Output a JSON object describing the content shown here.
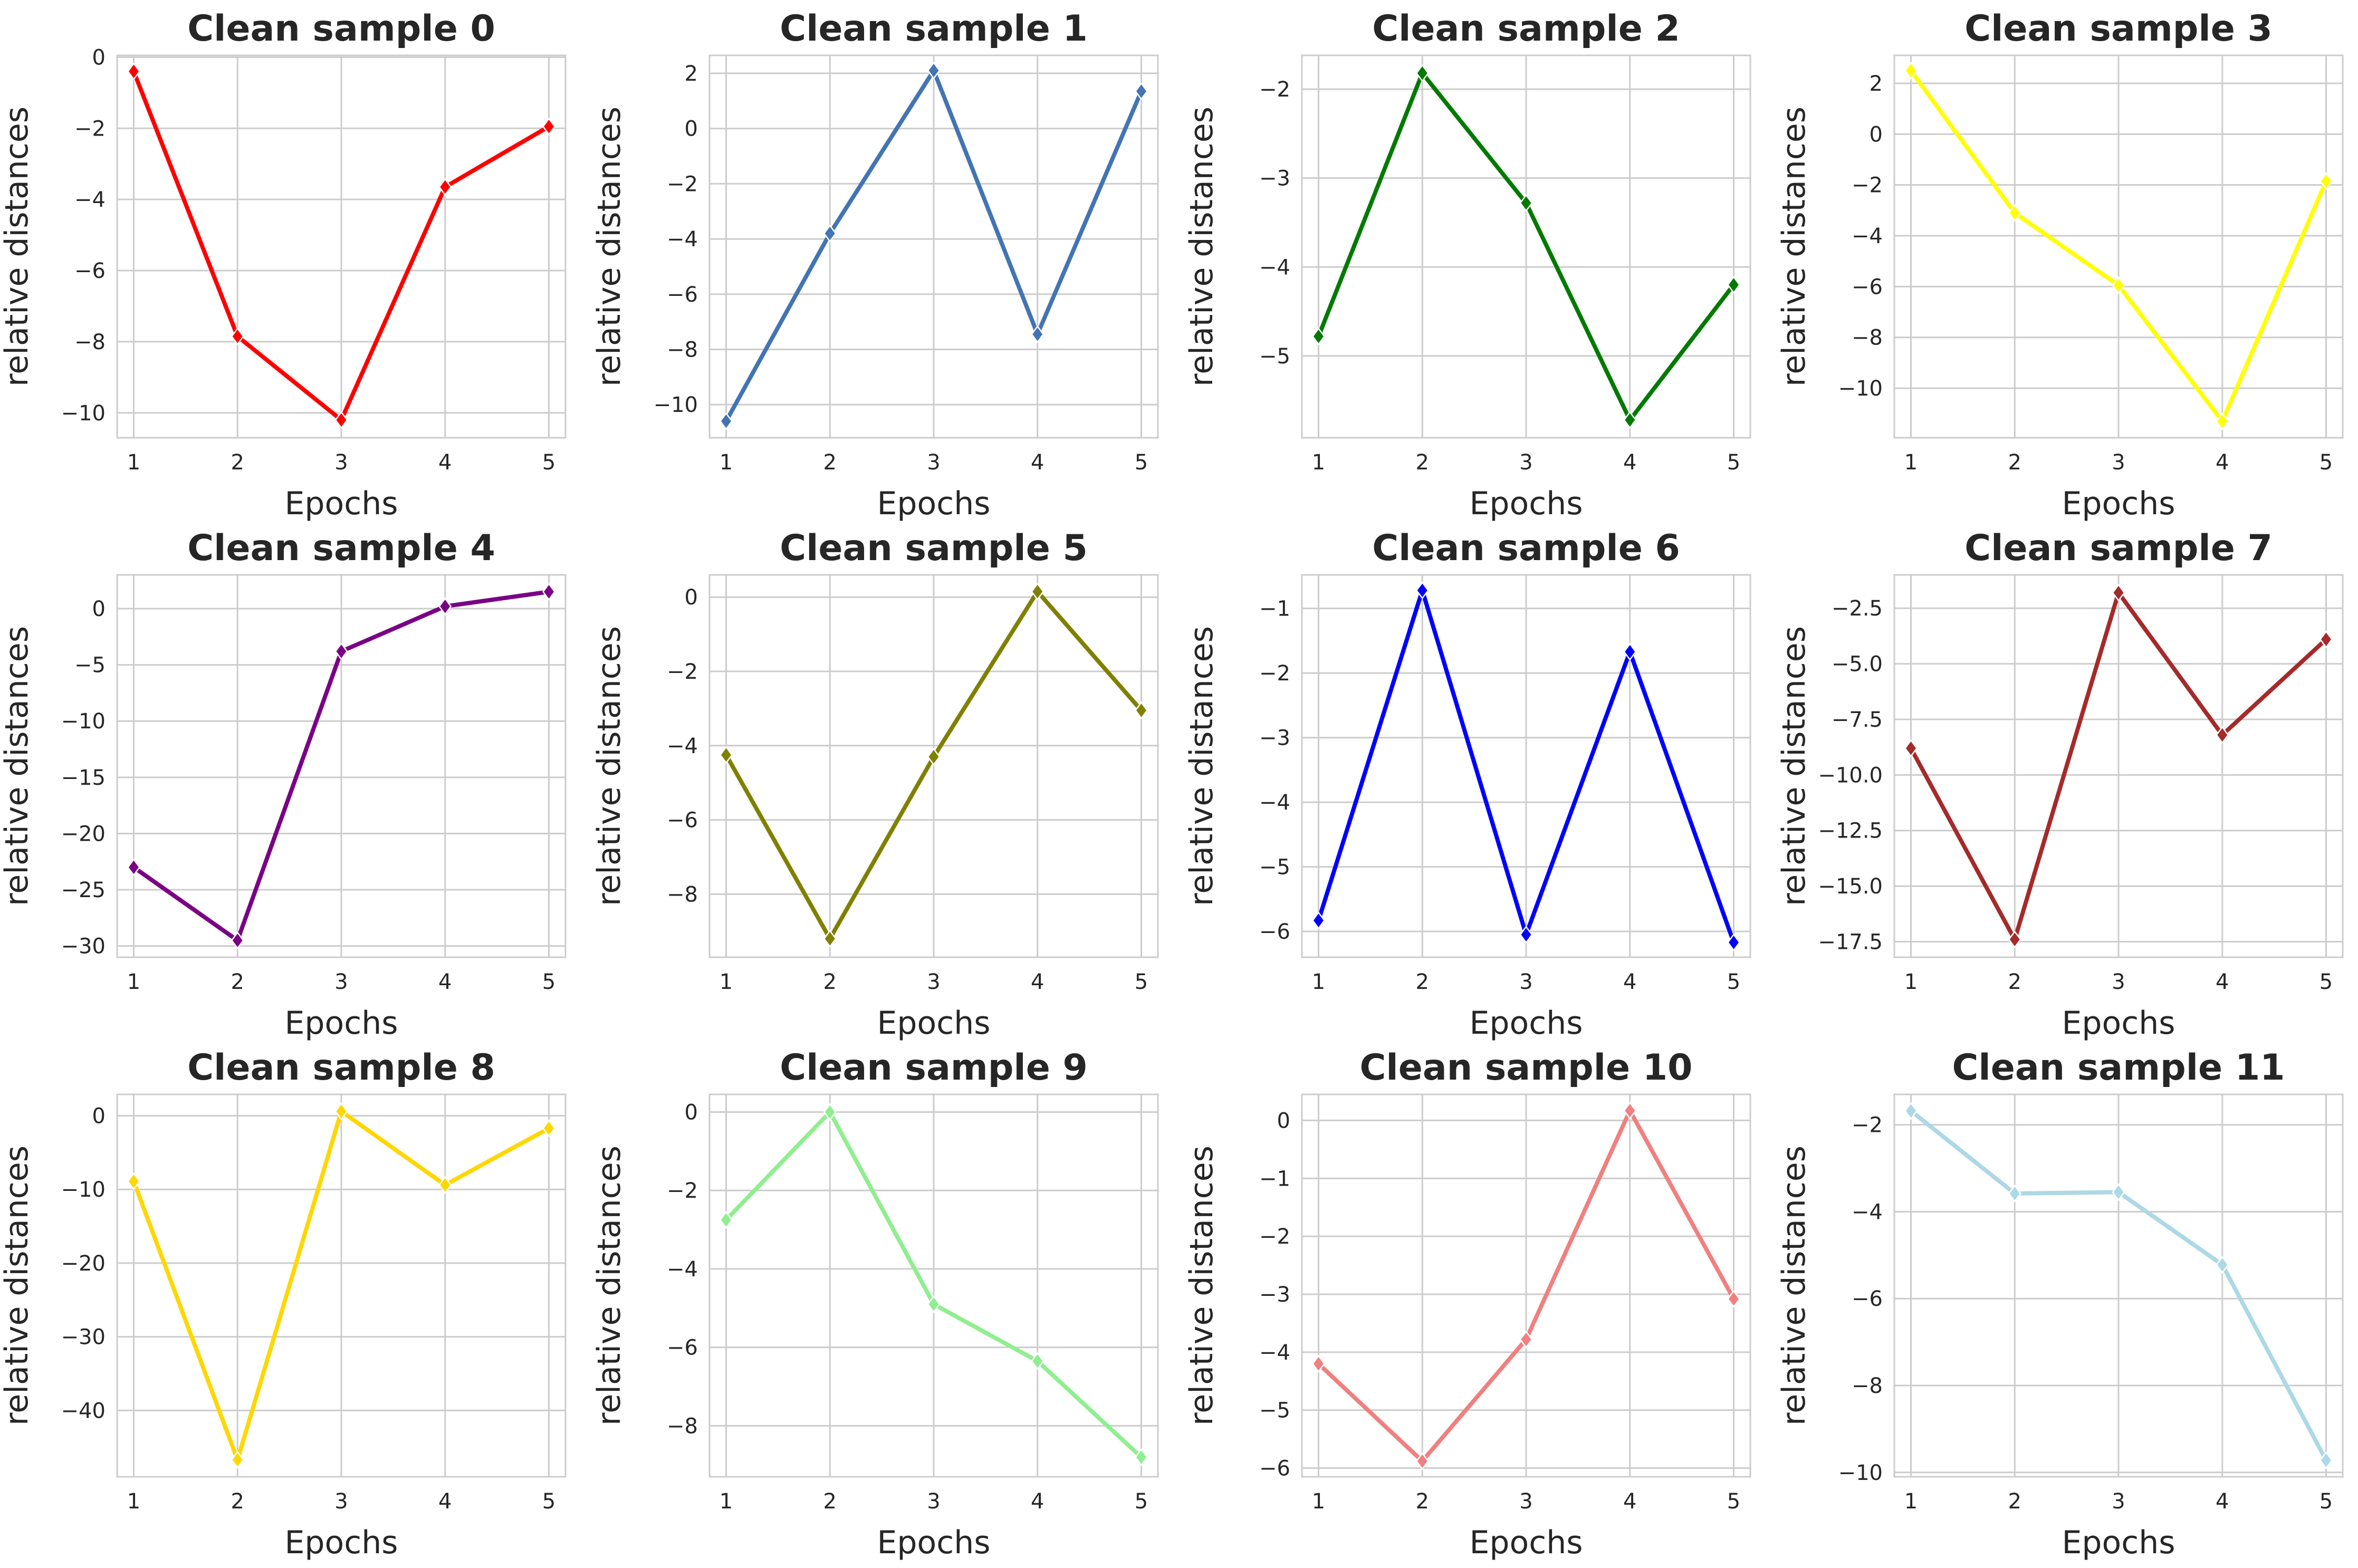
{
  "chart_data": [
    {
      "type": "line",
      "title": "Clean sample 0",
      "xlabel": "Epochs",
      "ylabel": "relative distances",
      "color": "#ff0000",
      "x": [
        1,
        2,
        3,
        4,
        5
      ],
      "values": [
        -0.4,
        -7.85,
        -10.2,
        -3.65,
        -1.95
      ],
      "ylim": [
        -10.7,
        0.05
      ],
      "yticks": [
        0,
        -2,
        -4,
        -6,
        -8,
        -10
      ],
      "ytick_labels": [
        "0",
        "−2",
        "−4",
        "−6",
        "−8",
        "−10"
      ],
      "grid": true
    },
    {
      "type": "line",
      "title": "Clean sample 1",
      "xlabel": "Epochs",
      "ylabel": "relative distances",
      "color": "#4374b3",
      "x": [
        1,
        2,
        3,
        4,
        5
      ],
      "values": [
        -10.6,
        -3.8,
        2.1,
        -7.45,
        1.35
      ],
      "ylim": [
        -11.2,
        2.65
      ],
      "yticks": [
        2,
        0,
        -2,
        -4,
        -6,
        -8,
        -10
      ],
      "ytick_labels": [
        "2",
        "0",
        "−2",
        "−4",
        "−6",
        "−8",
        "−10"
      ],
      "grid": true
    },
    {
      "type": "line",
      "title": "Clean sample 2",
      "xlabel": "Epochs",
      "ylabel": "relative distances",
      "color": "#007a00",
      "x": [
        1,
        2,
        3,
        4,
        5
      ],
      "values": [
        -4.78,
        -1.82,
        -3.28,
        -5.72,
        -4.2
      ],
      "ylim": [
        -5.92,
        -1.62
      ],
      "yticks": [
        -2,
        -3,
        -4,
        -5
      ],
      "ytick_labels": [
        "−2",
        "−3",
        "−4",
        "−5"
      ],
      "grid": true
    },
    {
      "type": "line",
      "title": "Clean sample 3",
      "xlabel": "Epochs",
      "ylabel": "relative distances",
      "color": "#ffff00",
      "x": [
        1,
        2,
        3,
        4,
        5
      ],
      "values": [
        2.5,
        -3.1,
        -5.95,
        -11.3,
        -1.85
      ],
      "ylim": [
        -11.95,
        3.1
      ],
      "yticks": [
        2,
        0,
        -2,
        -4,
        -6,
        -8,
        -10
      ],
      "ytick_labels": [
        "2",
        "0",
        "−2",
        "−4",
        "−6",
        "−8",
        "−10"
      ],
      "grid": true
    },
    {
      "type": "line",
      "title": "Clean sample 4",
      "xlabel": "Epochs",
      "ylabel": "relative distances",
      "color": "#7a0085",
      "x": [
        1,
        2,
        3,
        4,
        5
      ],
      "values": [
        -23.0,
        -29.5,
        -3.8,
        0.2,
        1.5
      ],
      "ylim": [
        -31.0,
        3.0
      ],
      "yticks": [
        0,
        -5,
        -10,
        -15,
        -20,
        -25,
        -30
      ],
      "ytick_labels": [
        "0",
        "−5",
        "−10",
        "−15",
        "−20",
        "−25",
        "−30"
      ],
      "grid": true
    },
    {
      "type": "line",
      "title": "Clean sample 5",
      "xlabel": "Epochs",
      "ylabel": "relative distances",
      "color": "#808000",
      "x": [
        1,
        2,
        3,
        4,
        5
      ],
      "values": [
        -4.25,
        -9.2,
        -4.3,
        0.15,
        -3.05
      ],
      "ylim": [
        -9.7,
        0.6
      ],
      "yticks": [
        0,
        -2,
        -4,
        -6,
        -8
      ],
      "ytick_labels": [
        "0",
        "−2",
        "−4",
        "−6",
        "−8"
      ],
      "grid": true
    },
    {
      "type": "line",
      "title": "Clean sample 6",
      "xlabel": "Epochs",
      "ylabel": "relative distances",
      "color": "#0000ff",
      "x": [
        1,
        2,
        3,
        4,
        5
      ],
      "values": [
        -5.83,
        -0.72,
        -6.05,
        -1.67,
        -6.17
      ],
      "ylim": [
        -6.4,
        -0.48
      ],
      "yticks": [
        -1,
        -2,
        -3,
        -4,
        -5,
        -6
      ],
      "ytick_labels": [
        "−1",
        "−2",
        "−3",
        "−4",
        "−5",
        "−6"
      ],
      "grid": true
    },
    {
      "type": "line",
      "title": "Clean sample 7",
      "xlabel": "Epochs",
      "ylabel": "relative distances",
      "color": "#a52a2a",
      "x": [
        1,
        2,
        3,
        4,
        5
      ],
      "values": [
        -8.8,
        -17.4,
        -1.8,
        -8.2,
        -3.9
      ],
      "ylim": [
        -18.2,
        -1.0
      ],
      "yticks": [
        -2.5,
        -5.0,
        -7.5,
        -10.0,
        -12.5,
        -15.0,
        -17.5
      ],
      "ytick_labels": [
        "−2.5",
        "−5.0",
        "−7.5",
        "−10.0",
        "−12.5",
        "−15.0",
        "−17.5"
      ],
      "grid": true
    },
    {
      "type": "line",
      "title": "Clean sample 8",
      "xlabel": "Epochs",
      "ylabel": "relative distances",
      "color": "#ffd700",
      "x": [
        1,
        2,
        3,
        4,
        5
      ],
      "values": [
        -8.9,
        -46.7,
        0.6,
        -9.4,
        -1.7
      ],
      "ylim": [
        -49.0,
        2.9
      ],
      "yticks": [
        0,
        -10,
        -20,
        -30,
        -40
      ],
      "ytick_labels": [
        "0",
        "−10",
        "−20",
        "−30",
        "−40"
      ],
      "grid": true
    },
    {
      "type": "line",
      "title": "Clean sample 9",
      "xlabel": "Epochs",
      "ylabel": "relative distances",
      "color": "#90ee90",
      "x": [
        1,
        2,
        3,
        4,
        5
      ],
      "values": [
        -2.75,
        0.0,
        -4.9,
        -6.35,
        -8.8
      ],
      "ylim": [
        -9.3,
        0.45
      ],
      "yticks": [
        0,
        -2,
        -4,
        -6,
        -8
      ],
      "ytick_labels": [
        "0",
        "−2",
        "−4",
        "−6",
        "−8"
      ],
      "grid": true
    },
    {
      "type": "line",
      "title": "Clean sample 10",
      "xlabel": "Epochs",
      "ylabel": "relative distances",
      "color": "#f08080",
      "x": [
        1,
        2,
        3,
        4,
        5
      ],
      "values": [
        -4.2,
        -5.88,
        -3.78,
        0.17,
        -3.08
      ],
      "ylim": [
        -6.15,
        0.45
      ],
      "yticks": [
        0,
        -1,
        -2,
        -3,
        -4,
        -5,
        -6
      ],
      "ytick_labels": [
        "0",
        "−1",
        "−2",
        "−3",
        "−4",
        "−5",
        "−6"
      ],
      "grid": true
    },
    {
      "type": "line",
      "title": "Clean sample 11",
      "xlabel": "Epochs",
      "ylabel": "relative distances",
      "color": "#add8e6",
      "x": [
        1,
        2,
        3,
        4,
        5
      ],
      "values": [
        -1.68,
        -3.58,
        -3.55,
        -5.22,
        -9.72
      ],
      "ylim": [
        -10.1,
        -1.3
      ],
      "yticks": [
        -2,
        -4,
        -6,
        -8,
        -10
      ],
      "ytick_labels": [
        "−2",
        "−4",
        "−6",
        "−8",
        "−10"
      ],
      "grid": true
    }
  ]
}
